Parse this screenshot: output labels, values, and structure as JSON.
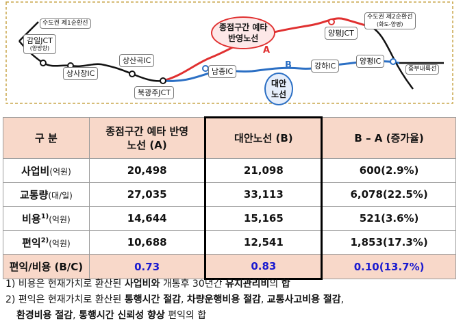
{
  "map": {
    "labels": {
      "seoul_ring1": "수도권 제1순환선",
      "gamil_jct": "감일JCT",
      "gamil_sub": "(양방향)",
      "sangsachang_ic": "상사창IC",
      "sangsangok_ic": "상산곡IC",
      "bukgwangju_jct": "북광주JCT",
      "namjong_ic": "남종IC",
      "gangha_ic": "강하IC",
      "yangpyeong_jct_top": "양평JCT",
      "yangpyeong_ic": "양평IC",
      "seoul_ring2": "수도권 제2순환선",
      "seoul_ring2_sub": "(화도-양평)",
      "jungbu_naeryuk": "중부내륙선"
    },
    "route_a": {
      "label_line1": "종점구간 예타",
      "label_line2": "반영노선",
      "letter": "A",
      "color": "#e03030"
    },
    "route_b": {
      "label_line1": "대안",
      "label_line2": "노선",
      "letter": "B",
      "color": "#2b6fc4"
    }
  },
  "table": {
    "headers": {
      "category": "구 분",
      "route_a": "종점구간 예타 반영\n노선 (A)",
      "route_b": "대안노선 (B)",
      "diff": "B – A (증가율)"
    },
    "rows": [
      {
        "label": "사업비",
        "sup": "",
        "unit": "(억원)",
        "a": "20,498",
        "b": "21,098",
        "diff": "600(2.9%)"
      },
      {
        "label": "교통량",
        "sup": "",
        "unit": "(대/일)",
        "a": "27,035",
        "b": "33,113",
        "diff": "6,078(22.5%)"
      },
      {
        "label": "비용",
        "sup": "1)",
        "unit": "(억원)",
        "a": "14,644",
        "b": "15,165",
        "diff": "521(3.6%)"
      },
      {
        "label": "편익",
        "sup": "2)",
        "unit": "(억원)",
        "a": "10,688",
        "b": "12,541",
        "diff": "1,853(17.3%)"
      }
    ],
    "ratio_row": {
      "label": "편익/비용 (B/C)",
      "a": "0.73",
      "b": "0.83",
      "diff": "0.10(13.7%)"
    }
  },
  "notes": {
    "note1": {
      "prefix": "1) 비용은 현재가치로 환산된 ",
      "bold1": "사업비와",
      "mid": " 개통후 30년간 ",
      "bold2": "유지관리비",
      "suffix_pre": "의 ",
      "bold3": "합"
    },
    "note2": {
      "prefix": "2) 편익은 현재가치로 환산된 ",
      "bold1": "통행시간 절감",
      "sep1": ", ",
      "bold2": "차량운행비용 절감",
      "sep2": ", ",
      "bold3": "교통사고비용 절감",
      "sep3": ",",
      "bold4": "환경비용 절감",
      "sep4": ", ",
      "bold5": "통행시간 신뢰성 향상",
      "suffix": " 편익의 합"
    }
  }
}
